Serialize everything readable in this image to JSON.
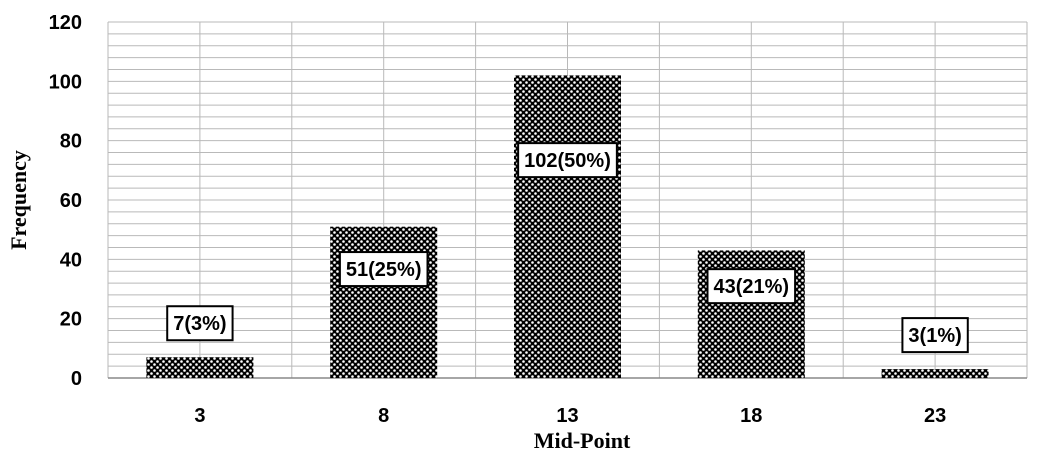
{
  "chart_data": {
    "type": "bar",
    "categories": [
      "3",
      "8",
      "13",
      "18",
      "23"
    ],
    "values": [
      7,
      51,
      102,
      43,
      3
    ],
    "data_labels": [
      "7(3%)",
      "51(25%)",
      "102(50%)",
      "43(21%)",
      "3(1%)"
    ],
    "xlabel": "Mid-Point",
    "ylabel": "Frequency",
    "ylim": [
      0,
      120
    ],
    "yticks": [
      "0",
      "20",
      "40",
      "60",
      "80",
      "100",
      "120"
    ],
    "grid": true,
    "bar_fill": "dotted-pattern"
  },
  "colors": {
    "bar": "#000000",
    "grid": "#b9b9b9",
    "background": "#ffffff"
  }
}
